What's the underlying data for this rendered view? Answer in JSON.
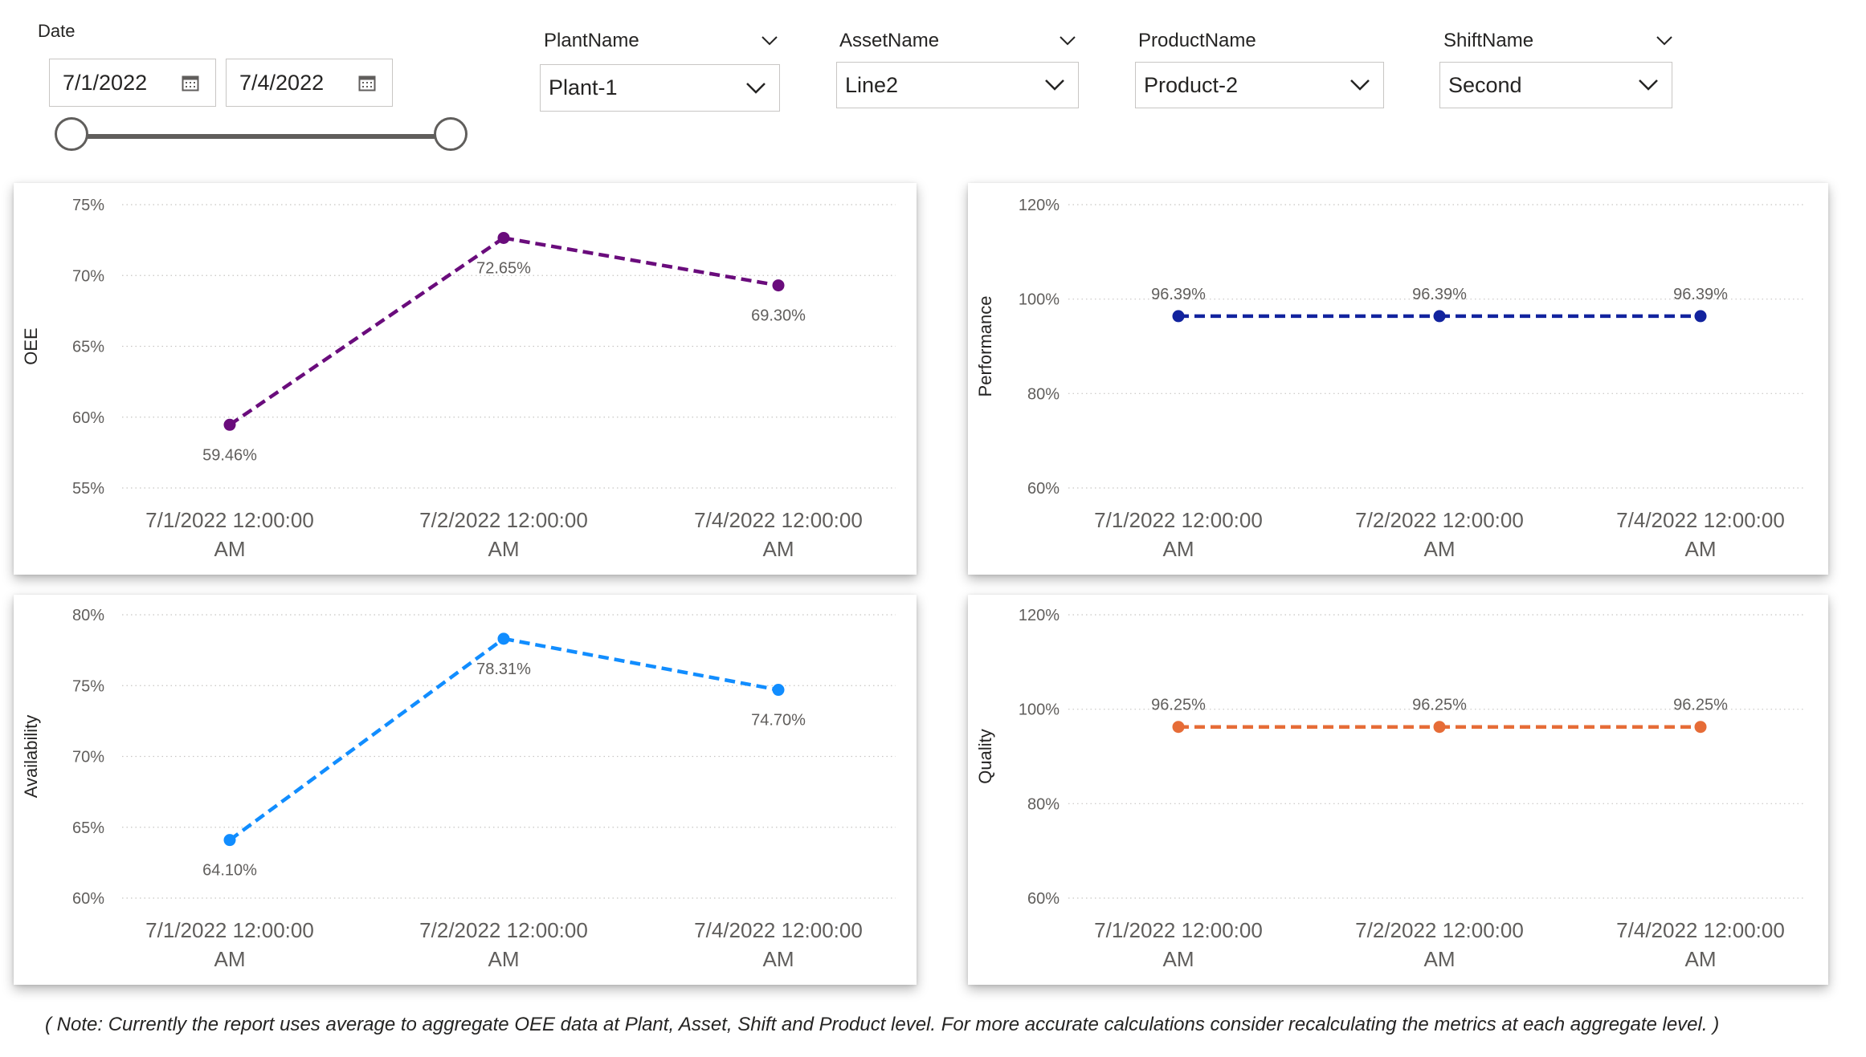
{
  "date_slicer": {
    "title": "Date",
    "start": "7/1/2022",
    "end": "7/4/2022",
    "calendar_icon": "calendar-icon"
  },
  "slicers": [
    {
      "name": "PlantName",
      "value": "Plant-1"
    },
    {
      "name": "AssetName",
      "value": "Line2"
    },
    {
      "name": "ProductName",
      "value": "Product-2"
    },
    {
      "name": "ShiftName",
      "value": "Second"
    }
  ],
  "chart_data": [
    {
      "type": "line",
      "ylabel": "OEE",
      "categories": [
        "7/1/2022 12:00:00 AM",
        "7/2/2022 12:00:00 AM",
        "7/4/2022 12:00:00 AM"
      ],
      "category_lines": [
        [
          "7/1/2022 12:00:00",
          "AM"
        ],
        [
          "7/2/2022 12:00:00",
          "AM"
        ],
        [
          "7/4/2022 12:00:00",
          "AM"
        ]
      ],
      "values": [
        59.46,
        72.65,
        69.3
      ],
      "labels": [
        "59.46%",
        "72.65%",
        "69.30%"
      ],
      "label_pos": [
        "below",
        "below",
        "below"
      ],
      "yticks": [
        55,
        60,
        65,
        70,
        75
      ],
      "ytick_labels": [
        "55%",
        "60%",
        "65%",
        "70%",
        "75%"
      ],
      "ylim": [
        55,
        75
      ],
      "color": "#6a0c7c",
      "line_style": "dashed",
      "grid": true
    },
    {
      "type": "line",
      "ylabel": "Performance",
      "categories": [
        "7/1/2022 12:00:00 AM",
        "7/2/2022 12:00:00 AM",
        "7/4/2022 12:00:00 AM"
      ],
      "category_lines": [
        [
          "7/1/2022 12:00:00",
          "AM"
        ],
        [
          "7/2/2022 12:00:00",
          "AM"
        ],
        [
          "7/4/2022 12:00:00",
          "AM"
        ]
      ],
      "values": [
        96.39,
        96.39,
        96.39
      ],
      "labels": [
        "96.39%",
        "96.39%",
        "96.39%"
      ],
      "label_pos": [
        "above",
        "above",
        "above"
      ],
      "yticks": [
        60,
        80,
        100,
        120
      ],
      "ytick_labels": [
        "60%",
        "80%",
        "100%",
        "120%"
      ],
      "ylim": [
        60,
        120
      ],
      "color": "#12239e",
      "line_style": "dashed",
      "grid": true
    },
    {
      "type": "line",
      "ylabel": "Availability",
      "categories": [
        "7/1/2022 12:00:00 AM",
        "7/2/2022 12:00:00 AM",
        "7/4/2022 12:00:00 AM"
      ],
      "category_lines": [
        [
          "7/1/2022 12:00:00",
          "AM"
        ],
        [
          "7/2/2022 12:00:00",
          "AM"
        ],
        [
          "7/4/2022 12:00:00",
          "AM"
        ]
      ],
      "values": [
        64.1,
        78.31,
        74.7
      ],
      "labels": [
        "64.10%",
        "78.31%",
        "74.70%"
      ],
      "label_pos": [
        "below",
        "below",
        "below"
      ],
      "yticks": [
        60,
        65,
        70,
        75,
        80
      ],
      "ytick_labels": [
        "60%",
        "65%",
        "70%",
        "75%",
        "80%"
      ],
      "ylim": [
        60,
        80
      ],
      "color": "#118dff",
      "line_style": "dashed",
      "grid": true
    },
    {
      "type": "line",
      "ylabel": "Quality",
      "categories": [
        "7/1/2022 12:00:00 AM",
        "7/2/2022 12:00:00 AM",
        "7/4/2022 12:00:00 AM"
      ],
      "category_lines": [
        [
          "7/1/2022 12:00:00",
          "AM"
        ],
        [
          "7/2/2022 12:00:00",
          "AM"
        ],
        [
          "7/4/2022 12:00:00",
          "AM"
        ]
      ],
      "values": [
        96.25,
        96.25,
        96.25
      ],
      "labels": [
        "96.25%",
        "96.25%",
        "96.25%"
      ],
      "label_pos": [
        "above",
        "above",
        "above"
      ],
      "yticks": [
        60,
        80,
        100,
        120
      ],
      "ytick_labels": [
        "60%",
        "80%",
        "100%",
        "120%"
      ],
      "ylim": [
        60,
        120
      ],
      "color": "#e66c37",
      "line_style": "dashed",
      "grid": true
    }
  ],
  "note": "( Note: Currently the report uses average to aggregate OEE data at Plant, Asset, Shift and Product level. For more accurate calculations consider recalculating the metrics at each aggregate level. )"
}
